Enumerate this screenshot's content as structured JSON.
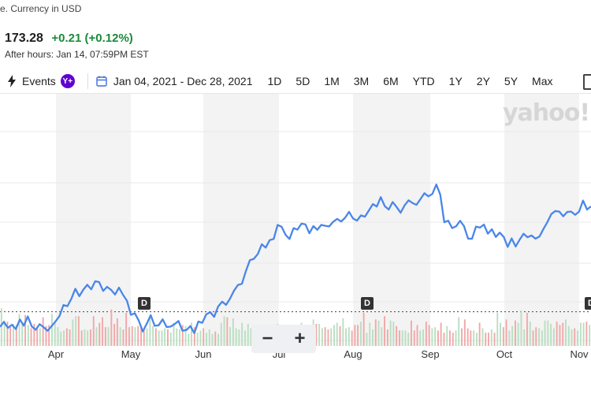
{
  "header": {
    "currency_note": "e. Currency in USD",
    "price": "173.28",
    "change": "+0.21 (+0.12%)",
    "after_hours": "After hours: Jan 14, 07:59PM EST"
  },
  "toolbar": {
    "events_label": "Events",
    "premium_badge": "Y+",
    "date_range": "Jan 04, 2021 - Dec 28, 2021",
    "ranges": [
      "1D",
      "5D",
      "1M",
      "3M",
      "6M",
      "YTD",
      "1Y",
      "2Y",
      "5Y",
      "Max"
    ]
  },
  "brand": {
    "logo": "yahoo!",
    "accent": "#4a86e8",
    "up": "#1a8a3a"
  },
  "dividends": [
    {
      "label": "D",
      "month": "May"
    },
    {
      "label": "D",
      "month": "Aug"
    },
    {
      "label": "D",
      "month": "Nov"
    }
  ],
  "zoom": {
    "minus": "−",
    "plus": "+"
  },
  "chart_data": {
    "type": "line",
    "x_axis_labels": [
      "Apr",
      "May",
      "Jun",
      "Jul",
      "Aug",
      "Sep",
      "Oct",
      "Nov"
    ],
    "reference_line": 136,
    "series": [
      {
        "values": [
          128.0,
          130.6,
          127.4,
          129.1,
          126.8,
          131.9,
          128.6,
          133.5,
          128.2,
          126.4,
          129.4,
          127.7,
          125.9,
          128.3,
          130.9,
          133.7,
          139.6,
          139.0,
          143.0,
          148.3,
          144.3,
          147.8,
          150.4,
          148.0,
          152.3,
          151.8,
          147.1,
          149.3,
          147.7,
          145.2,
          148.9,
          145.1,
          141.9,
          134.4,
          135.2,
          131.2,
          125.5,
          129.6,
          134.2,
          128.5,
          128.8,
          132.0,
          127.9,
          128.1,
          129.4,
          131.1,
          125.9,
          126.3,
          128.4,
          124.6,
          130.8,
          130.1,
          134.6,
          135.8,
          133.3,
          138.8,
          141.4,
          139.7,
          143.0,
          147.3,
          150.3,
          150.9,
          157.8,
          163.5,
          164.2,
          166.8,
          172.0,
          170.2,
          174.2,
          174.8,
          182.3,
          181.3,
          177.0,
          174.8,
          180.6,
          179.8,
          183.0,
          182.6,
          177.8,
          181.7,
          179.7,
          182.3,
          181.8,
          181.5,
          184.0,
          185.5,
          184.1,
          186.1,
          189.3,
          185.7,
          184.6,
          187.4,
          186.7,
          190.0,
          193.4,
          192.1,
          197.1,
          192.3,
          190.5,
          194.5,
          191.8,
          188.8,
          192.7,
          195.4,
          194.0,
          193.0,
          196.1,
          199.2,
          197.5,
          198.8,
          203.8,
          198.5,
          183.7,
          184.6,
          180.6,
          181.6,
          184.5,
          181.6,
          175.0,
          174.9,
          181.4,
          180.9,
          182.5,
          177.6,
          180.0,
          175.9,
          178.2,
          175.9,
          170.6,
          175.1,
          170.8,
          174.4,
          177.6,
          175.7,
          176.7,
          175.0,
          176.1,
          180.1,
          183.8,
          188.1,
          189.7,
          189.4,
          186.9,
          189.2,
          189.4,
          187.7,
          189.4,
          195.3,
          190.5,
          192.2
        ]
      }
    ],
    "volume": [
      34,
      23,
      22,
      17,
      20,
      19,
      29,
      21,
      28,
      19,
      16,
      20,
      17,
      16,
      26,
      18,
      19,
      29,
      22,
      17,
      13,
      14,
      16,
      15,
      24,
      27,
      27,
      14,
      15,
      14,
      15,
      27,
      17,
      21,
      26,
      17,
      17,
      33,
      20,
      25,
      17,
      15,
      30,
      17,
      18,
      17,
      18,
      18,
      15,
      16,
      26,
      18,
      16,
      14,
      14,
      16,
      15,
      12,
      21,
      16,
      15,
      19,
      18,
      11,
      21,
      17,
      12,
      14,
      16,
      12,
      15,
      11,
      13,
      11,
      21,
      27,
      26,
      17,
      25,
      16,
      15,
      21,
      14,
      20,
      16,
      16,
      15,
      18,
      16,
      13,
      16,
      15,
      14,
      20,
      15,
      12,
      18,
      18,
      16,
      18,
      14,
      21,
      16,
      14,
      17,
      24,
      20,
      20,
      16,
      17,
      15,
      16,
      19,
      21,
      18,
      25,
      16,
      17,
      14,
      19,
      19,
      22,
      30,
      12,
      21,
      15,
      24,
      23,
      17,
      27,
      15,
      23,
      22,
      18,
      14,
      14,
      14,
      12,
      23,
      14,
      19,
      14,
      15,
      22,
      19,
      16,
      17,
      14,
      21,
      12,
      18,
      14,
      12,
      14,
      26,
      16,
      24,
      16,
      14,
      14,
      12,
      21,
      16,
      12,
      12,
      15,
      12,
      30,
      21,
      17,
      24,
      14,
      18,
      23,
      21,
      32,
      15,
      30,
      22,
      14,
      17,
      16,
      14,
      23,
      23,
      20,
      16,
      22,
      19,
      21,
      24,
      18,
      15,
      16,
      14,
      21,
      21,
      22,
      19
    ]
  }
}
